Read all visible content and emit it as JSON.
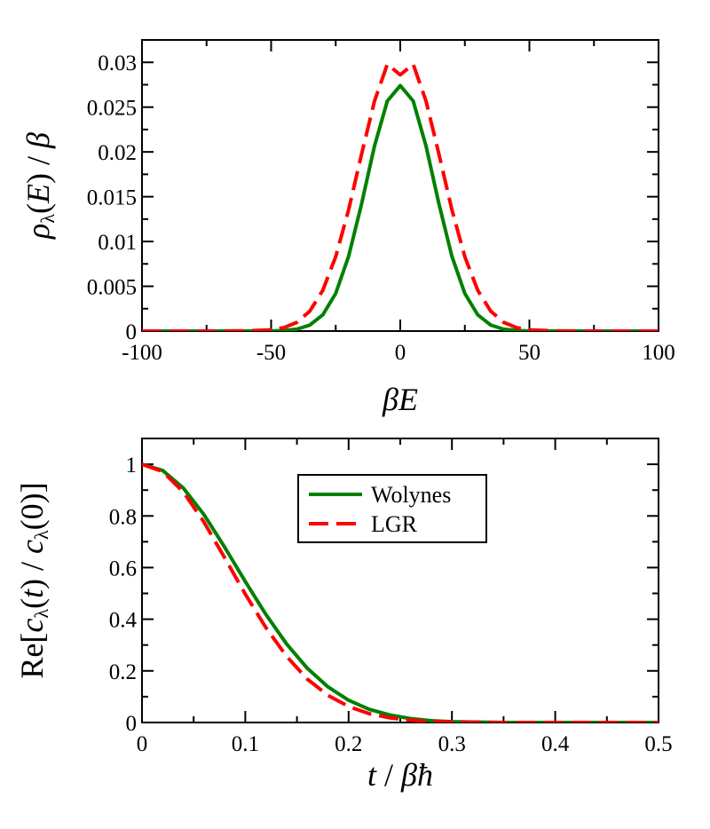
{
  "chart_data": [
    {
      "type": "line",
      "xlabel_parts": [
        {
          "text": "β",
          "style": "italic"
        },
        {
          "text": "E",
          "style": "italic"
        }
      ],
      "ylabel_parts": [
        {
          "text": "ρ",
          "style": "italic"
        },
        {
          "text": "λ",
          "style": "sub"
        },
        {
          "text": "(",
          "style": "normal"
        },
        {
          "text": "E",
          "style": "italic"
        },
        {
          "text": ") / ",
          "style": "normal"
        },
        {
          "text": "β",
          "style": "italic"
        }
      ],
      "xlim": [
        -100,
        100
      ],
      "ylim": [
        0,
        0.0325
      ],
      "xticks": [
        -100,
        -50,
        0,
        50,
        100
      ],
      "xtick_labels": [
        "-100",
        "-50",
        "0",
        "50",
        "100"
      ],
      "yticks": [
        0,
        0.005,
        0.01,
        0.015,
        0.02,
        0.025,
        0.03
      ],
      "ytick_labels": [
        "0",
        "0.005",
        "0.01",
        "0.015",
        "0.02",
        "0.025",
        "0.03"
      ],
      "series": [
        {
          "name": "Wolynes",
          "color": "#008000",
          "dash": "solid",
          "x": [
            -100,
            -80,
            -60,
            -50,
            -45,
            -40,
            -35,
            -30,
            -25,
            -20,
            -15,
            -10,
            -5,
            0,
            5,
            10,
            15,
            20,
            25,
            30,
            35,
            40,
            45,
            50,
            60,
            80,
            100
          ],
          "y": [
            0,
            0,
            0,
            1e-05,
            6e-05,
            0.00021,
            0.00067,
            0.00181,
            0.0042,
            0.00834,
            0.01417,
            0.02063,
            0.02569,
            0.0274,
            0.02569,
            0.02063,
            0.01417,
            0.00834,
            0.0042,
            0.00181,
            0.00067,
            0.00021,
            6e-05,
            1e-05,
            0,
            0,
            0
          ]
        },
        {
          "name": "LGR",
          "color": "#ff0000",
          "dash": "dashed",
          "x": [
            -100,
            -80,
            -60,
            -50,
            -45,
            -40,
            -35,
            -30,
            -25,
            -20,
            -15,
            -10,
            -5,
            0,
            5,
            10,
            15,
            20,
            25,
            30,
            35,
            40,
            45,
            50,
            60,
            80,
            100
          ],
          "y": [
            0,
            0,
            2e-05,
            0.00014,
            0.00039,
            0.00098,
            0.00223,
            0.00455,
            0.0083,
            0.01354,
            0.01972,
            0.02565,
            0.0298,
            0.0286,
            0.0298,
            0.02565,
            0.01972,
            0.01354,
            0.0083,
            0.00455,
            0.00223,
            0.00098,
            0.00039,
            0.00014,
            2e-05,
            0,
            0
          ]
        }
      ]
    },
    {
      "type": "line",
      "xlabel_parts": [
        {
          "text": "t",
          "style": "italic"
        },
        {
          "text": " / ",
          "style": "normal"
        },
        {
          "text": "βħ",
          "style": "italic"
        }
      ],
      "ylabel_parts": [
        {
          "text": "Re[",
          "style": "normal"
        },
        {
          "text": "c",
          "style": "italic"
        },
        {
          "text": "λ",
          "style": "sub"
        },
        {
          "text": "(",
          "style": "normal"
        },
        {
          "text": "t",
          "style": "italic"
        },
        {
          "text": ") / ",
          "style": "normal"
        },
        {
          "text": "c",
          "style": "italic"
        },
        {
          "text": "λ",
          "style": "sub"
        },
        {
          "text": "(0)]",
          "style": "normal"
        }
      ],
      "xlim": [
        0,
        0.5
      ],
      "ylim": [
        0,
        1.1
      ],
      "xticks": [
        0,
        0.1,
        0.2,
        0.3,
        0.4,
        0.5
      ],
      "xtick_labels": [
        "0",
        "0.1",
        "0.2",
        "0.3",
        "0.4",
        "0.5"
      ],
      "yticks": [
        0,
        0.2,
        0.4,
        0.6,
        0.8,
        1
      ],
      "ytick_labels": [
        "0",
        "0.2",
        "0.4",
        "0.6",
        "0.8",
        "1"
      ],
      "legend": {
        "position": "upper-center",
        "entries": [
          "Wolynes",
          "LGR"
        ]
      },
      "series": [
        {
          "name": "Wolynes",
          "color": "#008000",
          "dash": "solid",
          "x": [
            0,
            0.02,
            0.04,
            0.06,
            0.08,
            0.1,
            0.12,
            0.14,
            0.16,
            0.18,
            0.2,
            0.22,
            0.24,
            0.26,
            0.28,
            0.3,
            0.35,
            0.4,
            0.45,
            0.5
          ],
          "y": [
            1.0,
            0.976,
            0.908,
            0.805,
            0.679,
            0.546,
            0.418,
            0.304,
            0.21,
            0.138,
            0.086,
            0.051,
            0.029,
            0.015,
            0.007,
            0.003,
            0.0,
            0.0,
            0.0,
            0.0
          ]
        },
        {
          "name": "LGR",
          "color": "#ff0000",
          "dash": "dashed",
          "x": [
            0,
            0.02,
            0.04,
            0.06,
            0.08,
            0.1,
            0.12,
            0.14,
            0.16,
            0.18,
            0.2,
            0.22,
            0.24,
            0.26,
            0.28,
            0.3,
            0.35,
            0.4,
            0.45,
            0.5
          ],
          "y": [
            1.0,
            0.972,
            0.893,
            0.776,
            0.638,
            0.497,
            0.367,
            0.256,
            0.168,
            0.105,
            0.062,
            0.034,
            0.018,
            0.009,
            0.004,
            0.002,
            0.0,
            0.0,
            0.0,
            0.0
          ]
        }
      ]
    }
  ]
}
